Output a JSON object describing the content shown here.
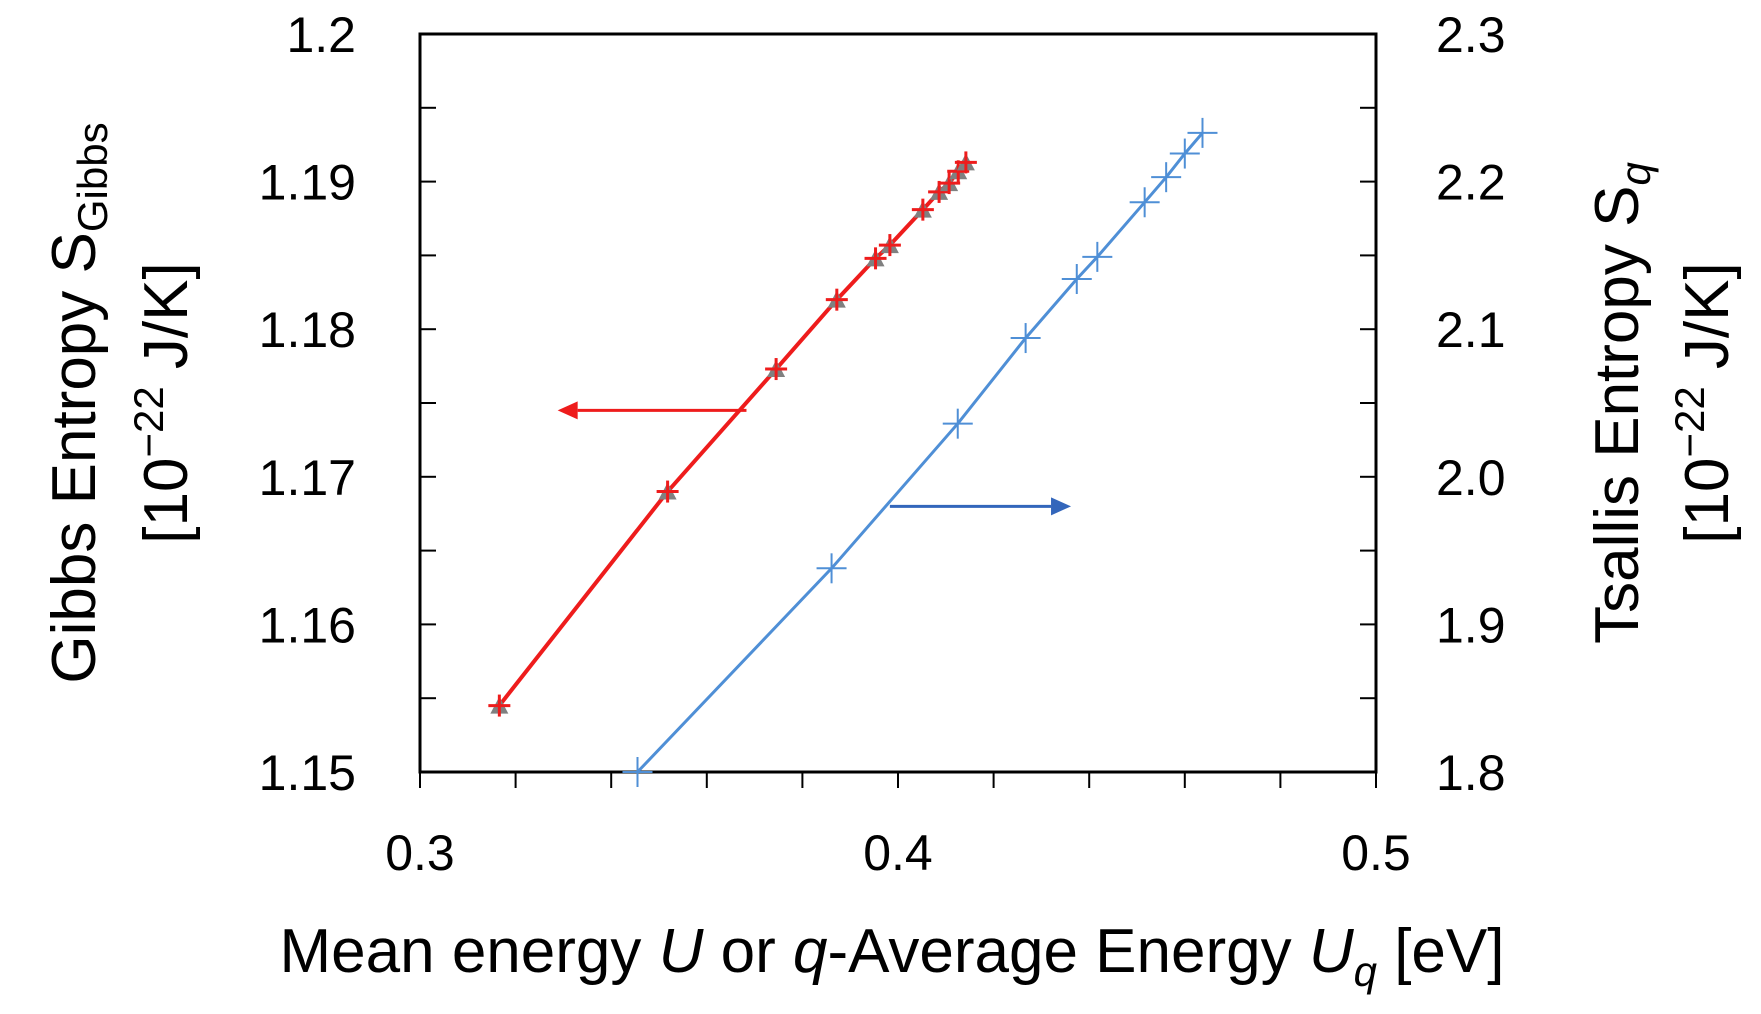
{
  "chart_data": {
    "type": "line",
    "x_axis": {
      "title_parts": [
        "Mean energy ",
        "U",
        " or ",
        "q",
        "-Average Energy ",
        "U",
        "q",
        " [eV]"
      ],
      "range": [
        0.3,
        0.5
      ],
      "ticks": [
        0.3,
        0.4,
        0.5
      ],
      "tick_labels": [
        "0.3",
        "0.4",
        "0.5"
      ],
      "minor_step": 0.02
    },
    "y_left": {
      "title_line1": "Gibbs Entropy S",
      "title_line1_sub": "Gibbs",
      "title_line2": "[10",
      "title_line2_sup": "−22",
      "title_line2_end": " J/K]",
      "range": [
        1.15,
        1.2
      ],
      "ticks": [
        1.15,
        1.16,
        1.17,
        1.18,
        1.19,
        1.2
      ],
      "tick_labels": [
        "1.15",
        "1.16",
        "1.17",
        "1.18",
        "1.19",
        "1.2"
      ],
      "minor_step": 0.005
    },
    "y_right": {
      "title_line1": "Tsallis Entropy S",
      "title_line1_sub": "q",
      "title_line2": "[10",
      "title_line2_sup": "−22",
      "title_line2_end": " J/K]",
      "range": [
        1.8,
        2.3
      ],
      "ticks": [
        1.8,
        1.9,
        2.0,
        2.1,
        2.2,
        2.3
      ],
      "tick_labels": [
        "1.8",
        "1.9",
        "2.0",
        "2.1",
        "2.2",
        "2.3"
      ],
      "minor_step": 0.05
    },
    "series": [
      {
        "name": "Gibbs entropy",
        "axis": "left",
        "color": "#ee1c1c",
        "marker_color": "#808080",
        "points": [
          [
            0.3166,
            1.1545
          ],
          [
            0.3518,
            1.169
          ],
          [
            0.3745,
            1.1773
          ],
          [
            0.3872,
            1.182
          ],
          [
            0.3953,
            1.1848
          ],
          [
            0.3983,
            1.1857
          ],
          [
            0.4052,
            1.1881
          ],
          [
            0.4086,
            1.1893
          ],
          [
            0.4107,
            1.1899
          ],
          [
            0.4126,
            1.1907
          ],
          [
            0.4142,
            1.1913
          ]
        ]
      },
      {
        "name": "Tsallis entropy",
        "axis": "right",
        "color": "#4f8fd6",
        "marker_color": "#4f8fd6",
        "points": [
          [
            0.3455,
            1.8
          ],
          [
            0.3861,
            1.938
          ],
          [
            0.4125,
            2.036
          ],
          [
            0.4267,
            2.094
          ],
          [
            0.4374,
            2.134
          ],
          [
            0.4417,
            2.149
          ],
          [
            0.4516,
            2.186
          ],
          [
            0.4561,
            2.203
          ],
          [
            0.46,
            2.219
          ],
          [
            0.4637,
            2.233
          ]
        ]
      }
    ],
    "annotations": [
      {
        "name": "arrow-to-left-axis",
        "color": "#ee1c1c",
        "direction": "left",
        "from_x": 0.3683,
        "to_x": 0.3288,
        "y_axis": "left",
        "y": 1.1745
      },
      {
        "name": "arrow-to-right-axis",
        "color": "#3366bb",
        "direction": "right",
        "from_x": 0.3983,
        "to_x": 0.4362,
        "y_axis": "right",
        "y": 1.98
      }
    ]
  }
}
